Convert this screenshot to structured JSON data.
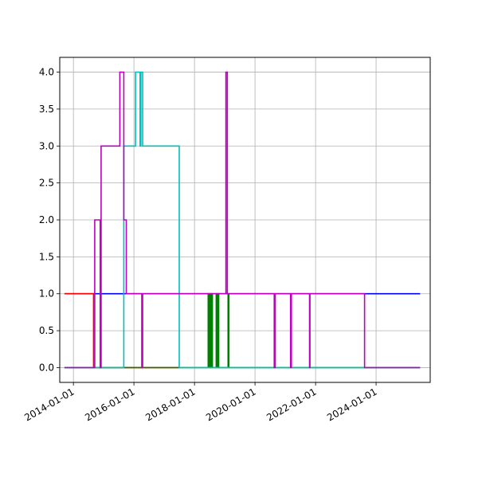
{
  "chart_data": {
    "type": "line",
    "title": "",
    "xlabel": "",
    "ylabel": "",
    "grid": true,
    "x_axis_type": "date",
    "xlim": [
      "2013-07-20",
      "2025-10-15"
    ],
    "ylim": [
      -0.2,
      4.2
    ],
    "x_ticks": [
      "2014-01-01",
      "2016-01-01",
      "2018-01-01",
      "2020-01-01",
      "2022-01-01",
      "2024-01-01"
    ],
    "y_ticks": [
      0.0,
      0.5,
      1.0,
      1.5,
      2.0,
      2.5,
      3.0,
      3.5,
      4.0
    ],
    "series": [
      {
        "color": "#0000ff",
        "points": [
          [
            "2013-09-15",
            1
          ],
          [
            "2025-06-15",
            1
          ]
        ]
      },
      {
        "color": "#ff0000",
        "points": [
          [
            "2013-09-15",
            1
          ],
          [
            "2014-09-01",
            1
          ],
          [
            "2014-09-01",
            0
          ],
          [
            "2017-07-01",
            0
          ]
        ]
      },
      {
        "color": "#008000",
        "points": [
          [
            "2013-09-15",
            0
          ],
          [
            "2018-06-15",
            0
          ],
          [
            "2018-06-15",
            1
          ],
          [
            "2018-06-25",
            1
          ],
          [
            "2018-06-25",
            0
          ],
          [
            "2018-07-05",
            0
          ],
          [
            "2018-07-05",
            1
          ],
          [
            "2018-07-15",
            1
          ],
          [
            "2018-07-15",
            0
          ],
          [
            "2018-07-25",
            0
          ],
          [
            "2018-07-25",
            1
          ],
          [
            "2018-08-05",
            1
          ],
          [
            "2018-08-05",
            0
          ],
          [
            "2018-09-20",
            0
          ],
          [
            "2018-09-20",
            1
          ],
          [
            "2018-09-30",
            1
          ],
          [
            "2018-09-30",
            0
          ],
          [
            "2018-10-10",
            0
          ],
          [
            "2018-10-10",
            1
          ],
          [
            "2018-10-20",
            1
          ],
          [
            "2018-10-20",
            0
          ],
          [
            "2019-02-10",
            0
          ],
          [
            "2019-02-10",
            1
          ],
          [
            "2019-02-20",
            1
          ],
          [
            "2019-02-20",
            0
          ],
          [
            "2025-06-15",
            0
          ]
        ]
      },
      {
        "color": "#00bfbf",
        "points": [
          [
            "2013-09-15",
            0
          ],
          [
            "2015-09-01",
            0
          ],
          [
            "2015-09-01",
            3
          ],
          [
            "2016-01-20",
            3
          ],
          [
            "2016-01-20",
            4
          ],
          [
            "2016-03-15",
            4
          ],
          [
            "2016-03-15",
            3
          ],
          [
            "2016-03-25",
            3
          ],
          [
            "2016-03-25",
            4
          ],
          [
            "2016-04-15",
            4
          ],
          [
            "2016-04-15",
            3
          ],
          [
            "2017-07-01",
            3
          ],
          [
            "2017-07-01",
            0
          ],
          [
            "2025-06-15",
            0
          ]
        ]
      },
      {
        "color": "#bf00bf",
        "points": [
          [
            "2013-09-15",
            0
          ],
          [
            "2014-09-15",
            0
          ],
          [
            "2014-09-15",
            2
          ],
          [
            "2014-11-20",
            2
          ],
          [
            "2014-11-20",
            0
          ],
          [
            "2014-12-01",
            0
          ],
          [
            "2014-12-01",
            3
          ],
          [
            "2015-07-15",
            3
          ],
          [
            "2015-07-15",
            4
          ],
          [
            "2015-09-01",
            4
          ],
          [
            "2015-09-01",
            2
          ],
          [
            "2015-10-01",
            2
          ],
          [
            "2015-10-01",
            1
          ],
          [
            "2016-04-05",
            1
          ],
          [
            "2016-04-05",
            0
          ],
          [
            "2016-04-15",
            0
          ],
          [
            "2016-04-15",
            1
          ],
          [
            "2019-01-15",
            1
          ],
          [
            "2019-01-15",
            4
          ],
          [
            "2019-02-01",
            4
          ],
          [
            "2019-02-01",
            1
          ],
          [
            "2020-08-20",
            1
          ],
          [
            "2020-08-20",
            0
          ],
          [
            "2020-09-01",
            0
          ],
          [
            "2020-09-01",
            1
          ],
          [
            "2021-03-05",
            1
          ],
          [
            "2021-03-05",
            0
          ],
          [
            "2021-03-15",
            0
          ],
          [
            "2021-03-15",
            1
          ],
          [
            "2021-10-20",
            1
          ],
          [
            "2021-10-20",
            0
          ],
          [
            "2021-10-25",
            0
          ],
          [
            "2021-10-25",
            1
          ],
          [
            "2023-08-15",
            1
          ],
          [
            "2023-08-15",
            0
          ],
          [
            "2025-06-15",
            0
          ]
        ]
      }
    ]
  }
}
